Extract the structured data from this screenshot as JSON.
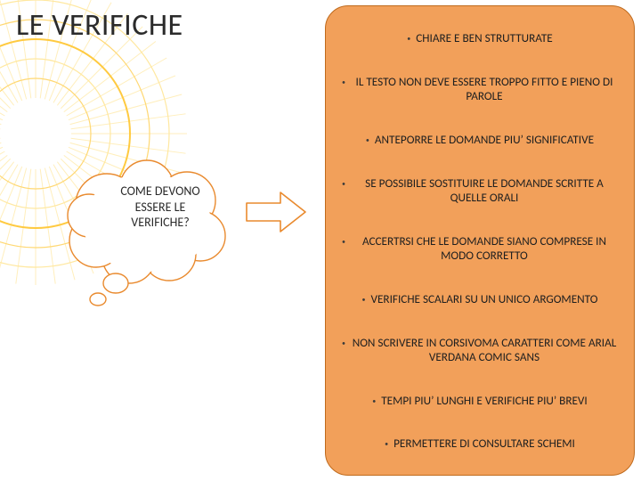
{
  "title": "LE VERIFICHE",
  "cloud": {
    "line1": "COME DEVONO",
    "line2": "ESSERE LE",
    "line3": "VERIFICHE?",
    "stroke": "#e98a2e",
    "fill": "#ffffff"
  },
  "sunburst": {
    "rings": [
      "#ffe8a0",
      "#ffd873",
      "#ffca40",
      "#ffe8a0",
      "#ffd873"
    ],
    "rays": "#ffe8a0"
  },
  "arrow": {
    "stroke": "#e98a2e",
    "fill": "#ffffff"
  },
  "box": {
    "bg": "#f2a05a",
    "border": "#bf6a1c",
    "radius": 26
  },
  "items": [
    "CHIARE E BEN STRUTTURATE",
    "IL TESTO NON DEVE ESSERE TROPPO FITTO E PIENO DI PAROLE",
    "ANTEPORRE LE DOMANDE PIU’ SIGNIFICATIVE",
    "SE POSSIBILE SOSTITUIRE LE DOMANDE SCRITTE A QUELLE ORALI",
    "ACCERTRSI CHE LE DOMANDE SIANO COMPRESE IN MODO CORRETTO",
    "VERIFICHE SCALARI SU UN UNICO ARGOMENTO",
    "NON SCRIVERE IN CORSIVOMA CARATTERI COME ARIAL VERDANA COMIC SANS",
    "TEMPI PIU’ LUNGHI E VERIFICHE PIU’ BREVI",
    "PERMETTERE DI CONSULTARE SCHEMI"
  ]
}
